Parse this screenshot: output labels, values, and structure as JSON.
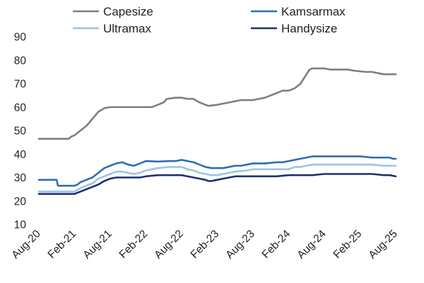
{
  "chart_data": {
    "type": "line",
    "title": "",
    "xlabel": "",
    "ylabel": "",
    "ylim": [
      10,
      90
    ],
    "yticks": [
      10,
      20,
      30,
      40,
      50,
      60,
      70,
      80,
      90
    ],
    "xlim": [
      0,
      60
    ],
    "xticks": [
      {
        "pos": 0,
        "label": "Aug-20"
      },
      {
        "pos": 6,
        "label": "Feb-21"
      },
      {
        "pos": 12,
        "label": "Aug-21"
      },
      {
        "pos": 18,
        "label": "Feb-22"
      },
      {
        "pos": 24,
        "label": "Aug-22"
      },
      {
        "pos": 30,
        "label": "Feb-23"
      },
      {
        "pos": 36,
        "label": "Aug-23"
      },
      {
        "pos": 42,
        "label": "Feb-24"
      },
      {
        "pos": 48,
        "label": "Aug-24"
      },
      {
        "pos": 54,
        "label": "Feb-25"
      },
      {
        "pos": 60,
        "label": "Aug-25"
      }
    ],
    "grid": false,
    "legend_position": "top",
    "series": [
      {
        "name": "Capesize",
        "color": "#7f7f7f",
        "points": [
          [
            0,
            46.5
          ],
          [
            5,
            46.5
          ],
          [
            5.5,
            47.5
          ],
          [
            6,
            48
          ],
          [
            7,
            50
          ],
          [
            8,
            52
          ],
          [
            9,
            55
          ],
          [
            10,
            58
          ],
          [
            11,
            59.5
          ],
          [
            12,
            60
          ],
          [
            13,
            60
          ],
          [
            15,
            60
          ],
          [
            17,
            60
          ],
          [
            19,
            60
          ],
          [
            20,
            61
          ],
          [
            21,
            62
          ],
          [
            21.5,
            63.5
          ],
          [
            23,
            64
          ],
          [
            24,
            64
          ],
          [
            25,
            63.5
          ],
          [
            26,
            63.5
          ],
          [
            27,
            62
          ],
          [
            28,
            61
          ],
          [
            28.5,
            60.5
          ],
          [
            30,
            61
          ],
          [
            31,
            61.5
          ],
          [
            32,
            62
          ],
          [
            33,
            62.5
          ],
          [
            34,
            63
          ],
          [
            35,
            63
          ],
          [
            36,
            63
          ],
          [
            37,
            63.5
          ],
          [
            38,
            64
          ],
          [
            39,
            65
          ],
          [
            40,
            66
          ],
          [
            41,
            67
          ],
          [
            42,
            67
          ],
          [
            43,
            68
          ],
          [
            44,
            70
          ],
          [
            44.5,
            72
          ],
          [
            45,
            74
          ],
          [
            45.5,
            76
          ],
          [
            46,
            76.5
          ],
          [
            47,
            76.5
          ],
          [
            48,
            76.5
          ],
          [
            49,
            76
          ],
          [
            50,
            76
          ],
          [
            52,
            76
          ],
          [
            53,
            75.5
          ],
          [
            55,
            75
          ],
          [
            56,
            75
          ],
          [
            57,
            74.5
          ],
          [
            58,
            74
          ],
          [
            60,
            74
          ]
        ]
      },
      {
        "name": "Kamsarmax",
        "color": "#2e6db4",
        "points": [
          [
            0,
            29
          ],
          [
            3,
            29
          ],
          [
            3.2,
            26.5
          ],
          [
            6,
            26.5
          ],
          [
            6.5,
            27
          ],
          [
            7,
            28
          ],
          [
            8,
            29
          ],
          [
            9,
            30
          ],
          [
            10,
            32
          ],
          [
            10.5,
            33
          ],
          [
            11,
            34
          ],
          [
            12,
            35
          ],
          [
            13,
            36
          ],
          [
            14,
            36.5
          ],
          [
            15,
            35.5
          ],
          [
            16,
            35
          ],
          [
            17,
            36
          ],
          [
            18,
            37
          ],
          [
            20,
            36.8
          ],
          [
            22,
            37
          ],
          [
            23,
            37
          ],
          [
            24,
            37.5
          ],
          [
            25,
            37
          ],
          [
            26,
            36.5
          ],
          [
            27,
            35.5
          ],
          [
            28,
            34.5
          ],
          [
            29,
            34
          ],
          [
            31,
            34
          ],
          [
            32,
            34.5
          ],
          [
            33,
            35
          ],
          [
            34,
            35
          ],
          [
            35,
            35.5
          ],
          [
            36,
            36
          ],
          [
            38,
            36
          ],
          [
            40,
            36.5
          ],
          [
            41,
            36.5
          ],
          [
            42,
            37
          ],
          [
            43,
            37.5
          ],
          [
            44,
            38
          ],
          [
            45,
            38.5
          ],
          [
            46,
            39
          ],
          [
            47,
            39
          ],
          [
            50,
            39
          ],
          [
            52,
            39
          ],
          [
            54,
            39
          ],
          [
            56,
            38.5
          ],
          [
            58,
            38.5
          ],
          [
            59,
            38.5
          ],
          [
            59.5,
            38
          ],
          [
            60,
            38
          ]
        ]
      },
      {
        "name": "Ultramax",
        "color": "#9dc3e6",
        "points": [
          [
            0,
            24
          ],
          [
            4,
            24
          ],
          [
            6,
            24
          ],
          [
            7,
            25.5
          ],
          [
            8,
            26.5
          ],
          [
            9,
            27.5
          ],
          [
            10,
            29.5
          ],
          [
            11,
            30.5
          ],
          [
            12,
            31.5
          ],
          [
            13,
            32.5
          ],
          [
            14,
            32.5
          ],
          [
            15,
            32
          ],
          [
            16,
            31.5
          ],
          [
            17,
            32
          ],
          [
            18,
            33
          ],
          [
            20,
            34
          ],
          [
            22,
            34.5
          ],
          [
            24,
            34.5
          ],
          [
            25,
            33.5
          ],
          [
            26,
            33
          ],
          [
            27,
            32
          ],
          [
            28,
            31.5
          ],
          [
            29,
            31
          ],
          [
            30,
            31
          ],
          [
            31,
            31.5
          ],
          [
            32,
            32
          ],
          [
            33,
            32.5
          ],
          [
            35,
            33
          ],
          [
            36,
            33.5
          ],
          [
            38,
            33.5
          ],
          [
            40,
            33.5
          ],
          [
            42,
            33.5
          ],
          [
            43,
            34.5
          ],
          [
            44,
            34.5
          ],
          [
            45,
            35
          ],
          [
            46,
            35.5
          ],
          [
            48,
            35.5
          ],
          [
            50,
            35.5
          ],
          [
            52,
            35.5
          ],
          [
            54,
            35.5
          ],
          [
            56,
            35.5
          ],
          [
            58,
            35
          ],
          [
            59,
            35
          ],
          [
            60,
            35
          ]
        ]
      },
      {
        "name": "Handysize",
        "color": "#1f2f6e",
        "points": [
          [
            0,
            23
          ],
          [
            4,
            23
          ],
          [
            6,
            23
          ],
          [
            7,
            24
          ],
          [
            8,
            25
          ],
          [
            9,
            26
          ],
          [
            10,
            27
          ],
          [
            11,
            28.5
          ],
          [
            12,
            29.5
          ],
          [
            13,
            30
          ],
          [
            14,
            30
          ],
          [
            16,
            30
          ],
          [
            17,
            30
          ],
          [
            18,
            30.5
          ],
          [
            20,
            31
          ],
          [
            22,
            31
          ],
          [
            24,
            31
          ],
          [
            25,
            30.5
          ],
          [
            26,
            30
          ],
          [
            27,
            29.5
          ],
          [
            28,
            29
          ],
          [
            28.5,
            28.5
          ],
          [
            29,
            28.5
          ],
          [
            30,
            29
          ],
          [
            31,
            29.5
          ],
          [
            32,
            30
          ],
          [
            33,
            30.5
          ],
          [
            35,
            30.5
          ],
          [
            36,
            30.5
          ],
          [
            38,
            30.5
          ],
          [
            40,
            30.5
          ],
          [
            42,
            31
          ],
          [
            44,
            31
          ],
          [
            46,
            31
          ],
          [
            48,
            31.5
          ],
          [
            50,
            31.5
          ],
          [
            52,
            31.5
          ],
          [
            54,
            31.5
          ],
          [
            56,
            31.5
          ],
          [
            58,
            31
          ],
          [
            59,
            31
          ],
          [
            60,
            30.5
          ]
        ]
      }
    ]
  }
}
